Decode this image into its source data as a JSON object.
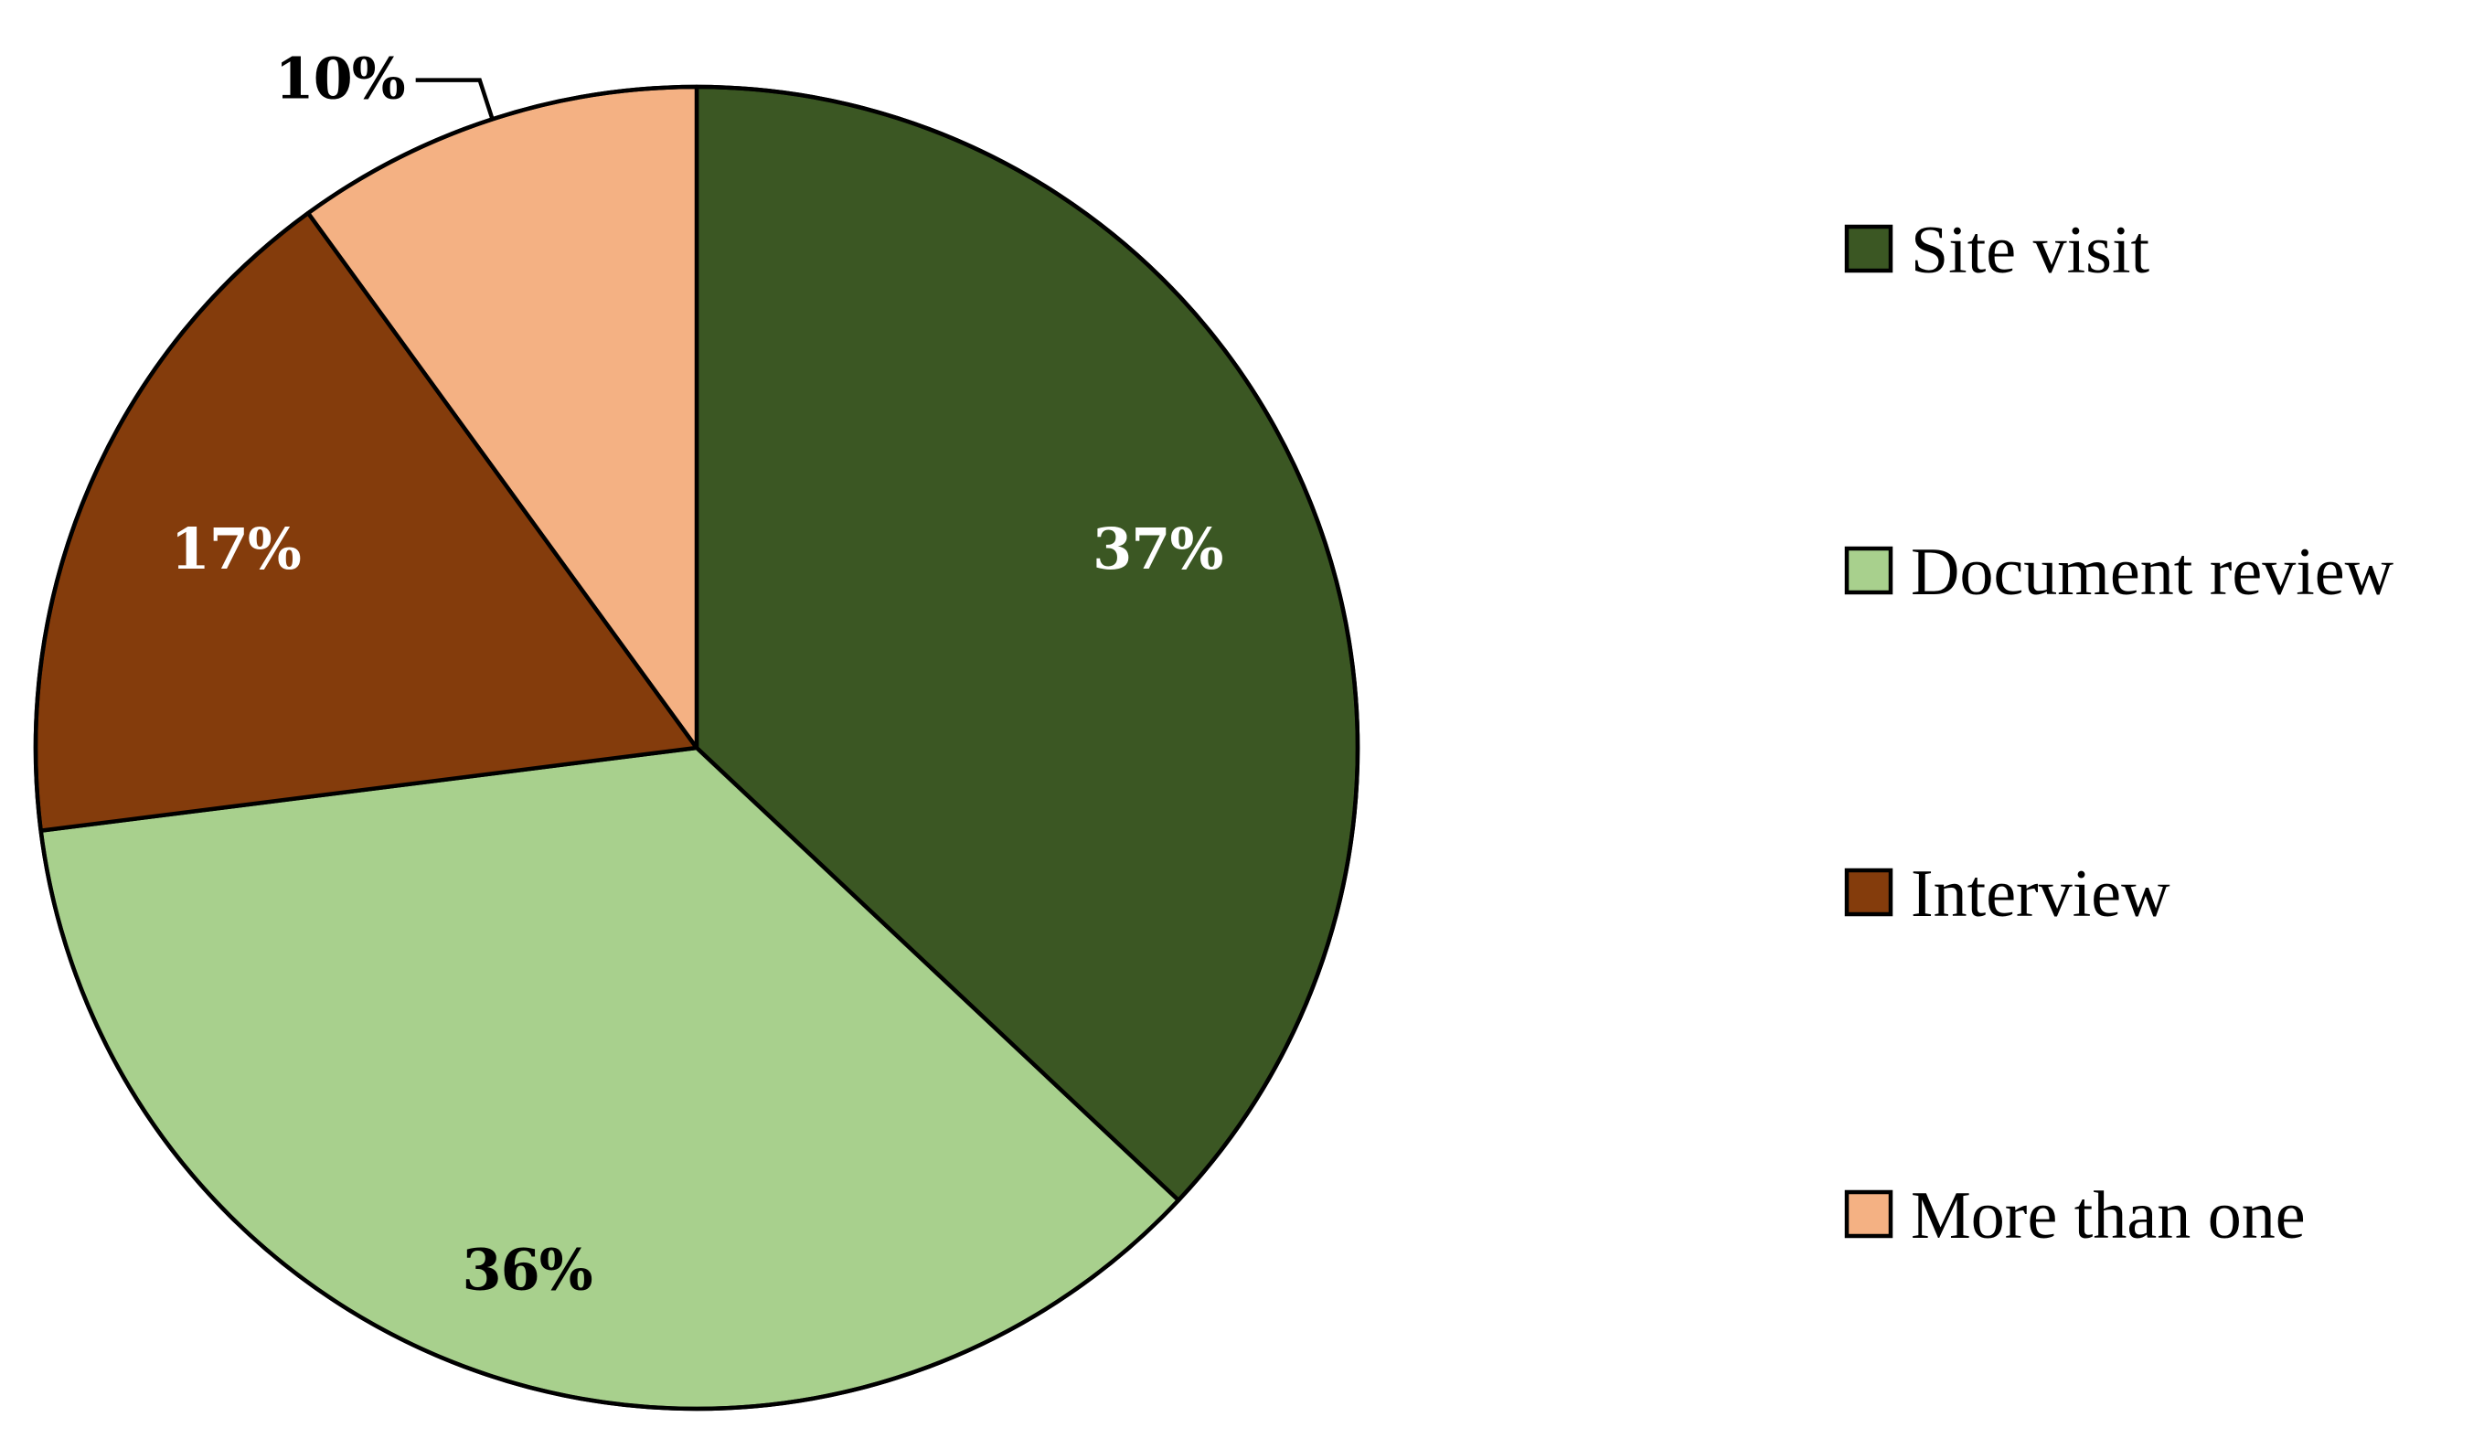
{
  "chart_data": {
    "type": "pie",
    "title": "",
    "start_angle_deg": 0,
    "direction": "clockwise",
    "slices": [
      {
        "label": "Site visit",
        "value": 37,
        "value_label": "37%",
        "color": "#3b5723",
        "label_color": "#ffffff"
      },
      {
        "label": "Document review",
        "value": 36,
        "value_label": "36%",
        "color": "#a8d08d",
        "label_color": "#000000"
      },
      {
        "label": "Interview",
        "value": 17,
        "value_label": "17%",
        "color": "#843c0c",
        "label_color": "#ffffff"
      },
      {
        "label": "More than one",
        "value": 10,
        "value_label": "10%",
        "color": "#f4b183",
        "label_color": "#000000"
      }
    ],
    "legend": {
      "position": "right",
      "entries": [
        "Site visit",
        "Document review",
        "Interview",
        "More than one"
      ]
    }
  }
}
